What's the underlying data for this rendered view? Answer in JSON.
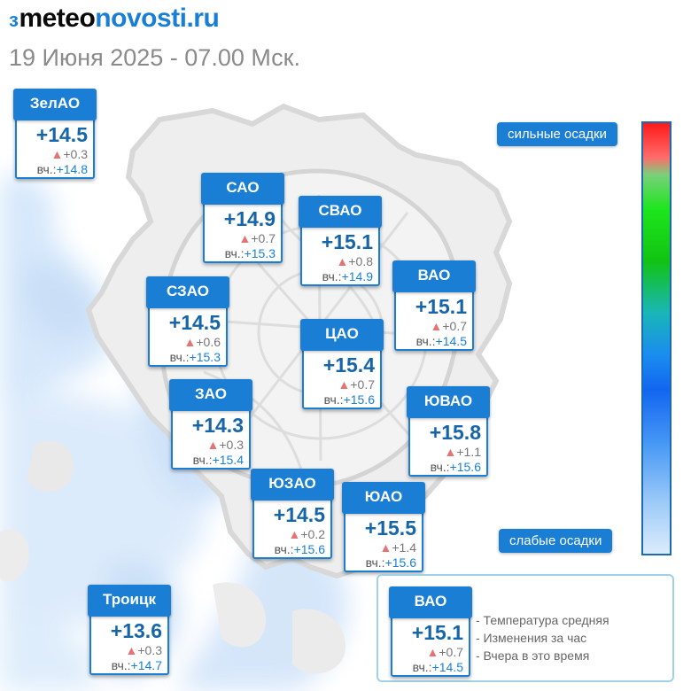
{
  "header": {
    "logo_mark": "ɜ",
    "logo_meteo": "meteo",
    "logo_novosti": "novosti",
    "logo_ru": ".ru",
    "subtitle": "19 Июня 2025 - 07.00 Мск."
  },
  "districts": [
    {
      "name": "ЗелАО",
      "temp": "+14.5",
      "change": "+0.3",
      "yest_label": "вч.:",
      "yest": "+14.8"
    },
    {
      "name": "САО",
      "temp": "+14.9",
      "change": "+0.7",
      "yest_label": "вч.:",
      "yest": "+15.3"
    },
    {
      "name": "СВАО",
      "temp": "+15.1",
      "change": "+0.8",
      "yest_label": "вч.:",
      "yest": "+14.9"
    },
    {
      "name": "ВАО",
      "temp": "+15.1",
      "change": "+0.7",
      "yest_label": "вч.:",
      "yest": "+14.5"
    },
    {
      "name": "СЗАО",
      "temp": "+14.5",
      "change": "+0.6",
      "yest_label": "вч.:",
      "yest": "+15.3"
    },
    {
      "name": "ЦАО",
      "temp": "+15.4",
      "change": "+0.7",
      "yest_label": "вч.:",
      "yest": "+15.6"
    },
    {
      "name": "ЗАО",
      "temp": "+14.3",
      "change": "+0.3",
      "yest_label": "вч.:",
      "yest": "+15.4"
    },
    {
      "name": "ЮВАО",
      "temp": "+15.8",
      "change": "+1.1",
      "yest_label": "вч.:",
      "yest": "+15.6"
    },
    {
      "name": "ЮЗАО",
      "temp": "+14.5",
      "change": "+0.2",
      "yest_label": "вч.:",
      "yest": "+15.6"
    },
    {
      "name": "ЮАО",
      "temp": "+15.5",
      "change": "+1.4",
      "yest_label": "вч.:",
      "yest": "+15.6"
    },
    {
      "name": "Троицк",
      "temp": "+13.6",
      "change": "+0.3",
      "yest_label": "вч.:",
      "yest": "+14.7"
    }
  ],
  "scale": {
    "top_label": "сильные осадки",
    "bottom_label": "слабые осадки"
  },
  "legend": {
    "sample": {
      "name": "ВАО",
      "temp": "+15.1",
      "change": "+0.7",
      "yest_label": "вч.:",
      "yest": "+14.5"
    },
    "items": [
      "- Температура средняя",
      "- Изменения за час",
      "- Вчера в это время"
    ]
  },
  "colors": {
    "accent": "#1a7fd4",
    "temp_text": "#1565a8",
    "change_triangle": "#e57373",
    "precip_light": "#cfe4fa"
  },
  "icons": {
    "change": "triangle-up-icon"
  }
}
